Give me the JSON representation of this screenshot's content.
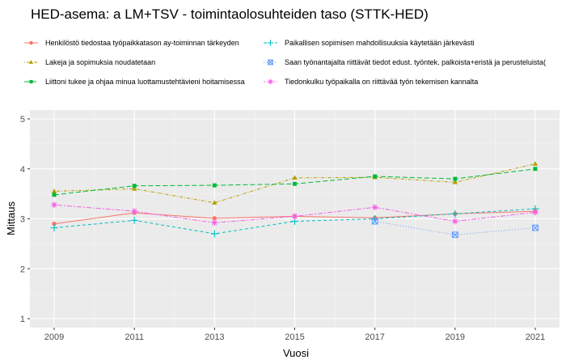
{
  "chart_data": {
    "type": "line",
    "title": "HED-asema: a LM+TSV  - toimintaolosuhteiden taso (STTK-HED)",
    "xlabel": "Vuosi",
    "ylabel": "Mittaus",
    "x": [
      2009,
      2011,
      2013,
      2015,
      2017,
      2019,
      2021
    ],
    "x_ticks": [
      "2009",
      "2011",
      "2013",
      "2015",
      "2017",
      "2019",
      "2021"
    ],
    "xlim": [
      2009,
      2021
    ],
    "ylim": [
      1,
      5
    ],
    "y_ticks": [
      "1",
      "2",
      "3",
      "4",
      "5"
    ],
    "grid": true,
    "legend_position": "top",
    "series": [
      {
        "name": "Henkilöstö tiedostaa työpaikkatason ay-toiminnan tärkeyden",
        "color": "#F8766D",
        "dash": "solid",
        "marker": "circle",
        "values": [
          2.9,
          3.12,
          3.01,
          3.05,
          3.02,
          3.1,
          3.15
        ]
      },
      {
        "name": "Lakeja ja sopimuksia noudatetaan",
        "color": "#B79F00",
        "dash": "dotdash",
        "marker": "triangle",
        "values": [
          3.55,
          3.6,
          3.32,
          3.82,
          3.83,
          3.73,
          4.1
        ]
      },
      {
        "name": "Liittoni tukee ja ohjaa minua luottamustehtävieni hoitamisessa",
        "color": "#00BA38",
        "dash": "longdash",
        "marker": "square",
        "values": [
          3.48,
          3.66,
          3.67,
          3.7,
          3.85,
          3.8,
          4.0
        ]
      },
      {
        "name": "Paikallisen sopimisen mahdollisuuksia käytetään järkevästi",
        "color": "#00BFC4",
        "dash": "dashed",
        "marker": "plus",
        "values": [
          2.82,
          2.97,
          2.7,
          2.95,
          3.0,
          3.1,
          3.2
        ]
      },
      {
        "name": "Saan työnantajalta riittävät tiedot edust. työntek. palkoista+eristä ja perusteluista(",
        "color": "#619CFF",
        "dash": "dotted",
        "marker": "boxx",
        "values": [
          null,
          null,
          null,
          null,
          2.95,
          2.68,
          2.82
        ]
      },
      {
        "name": "Tiedonkulku työpaikalla on riittävää työn tekemisen kannalta",
        "color": "#F564E3",
        "dash": "twodash",
        "marker": "star",
        "values": [
          3.28,
          3.15,
          2.92,
          3.05,
          3.23,
          2.95,
          3.13
        ]
      }
    ]
  }
}
